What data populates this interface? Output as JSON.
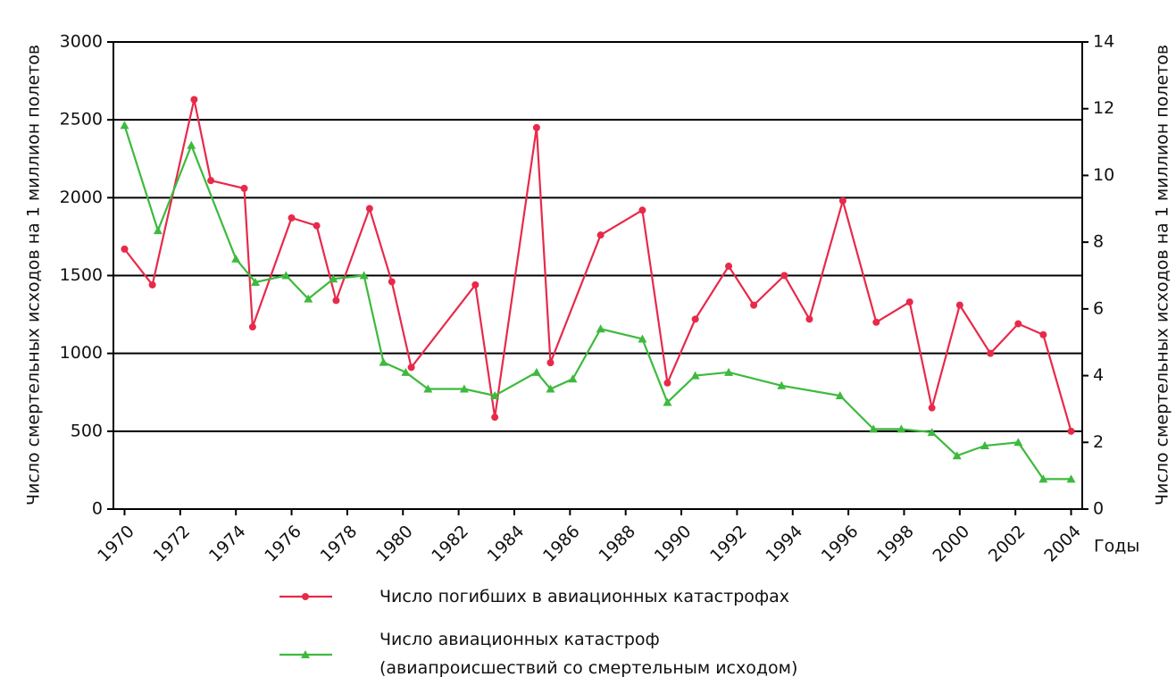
{
  "chart_data": {
    "type": "line",
    "ylabel": "Число смертельных исходов на 1 миллион полетов",
    "y2label": "Число смертельных исходов на 1 миллион полетов",
    "xlabel": "Годы",
    "xlim": [
      1969.6,
      2004.4
    ],
    "xticks": [
      1970,
      1972,
      1974,
      1976,
      1978,
      1980,
      1982,
      1984,
      1986,
      1988,
      1990,
      1992,
      1994,
      1996,
      1998,
      2000,
      2002,
      2004
    ],
    "ylim": [
      0,
      3000
    ],
    "yticks": [
      0,
      500,
      1000,
      1500,
      2000,
      2500,
      3000
    ],
    "y2lim": [
      0,
      14
    ],
    "y2ticks": [
      0,
      2,
      4,
      6,
      8,
      10,
      12,
      14
    ],
    "grid": true,
    "series": [
      {
        "name": "Число погибших в авиационных катастрофах",
        "color": "#e8294a",
        "marker": "circle",
        "x": [
          1970.0,
          1971.0,
          1972.5,
          1973.1,
          1974.3,
          1974.6,
          1976.0,
          1976.9,
          1977.6,
          1978.8,
          1979.6,
          1980.3,
          1982.6,
          1983.3,
          1984.8,
          1985.3,
          1987.1,
          1988.6,
          1989.5,
          1990.5,
          1991.7,
          1992.6,
          1993.7,
          1994.6,
          1995.8,
          1997.0,
          1998.2,
          1999.0,
          2000.0,
          2001.1,
          2002.1,
          2003.0,
          2004.0
        ],
        "values": [
          1670,
          1440,
          2630,
          2110,
          2060,
          1170,
          1870,
          1820,
          1340,
          1930,
          1460,
          910,
          1440,
          590,
          2450,
          940,
          1760,
          1920,
          810,
          1220,
          1560,
          1310,
          1500,
          1220,
          1980,
          1200,
          1330,
          650,
          1310,
          1000,
          1190,
          1120,
          500
        ]
      },
      {
        "name": "Число авиационных катастроф\n(авиапроисшествий со смертельным исходом)",
        "color": "#3dba3d",
        "marker": "triangle",
        "axis": "y2",
        "x": [
          1970.0,
          1971.2,
          1972.4,
          1974.0,
          1974.7,
          1975.8,
          1976.6,
          1977.5,
          1978.6,
          1979.3,
          1980.1,
          1980.9,
          1982.2,
          1983.3,
          1984.8,
          1985.3,
          1986.1,
          1987.1,
          1988.6,
          1989.5,
          1990.5,
          1991.7,
          1993.6,
          1995.7,
          1996.9,
          1997.9,
          1999.0,
          1999.9,
          2000.9,
          2002.1,
          2003.0,
          2004.0
        ],
        "values": [
          11.5,
          8.35,
          10.9,
          7.5,
          6.8,
          7.0,
          6.3,
          6.9,
          7.0,
          4.4,
          4.1,
          3.6,
          3.6,
          3.4,
          4.1,
          3.6,
          3.9,
          5.4,
          5.1,
          3.2,
          4.0,
          4.1,
          3.7,
          3.4,
          2.4,
          2.4,
          2.3,
          1.6,
          1.9,
          2.0,
          0.9,
          0.9
        ]
      }
    ]
  }
}
